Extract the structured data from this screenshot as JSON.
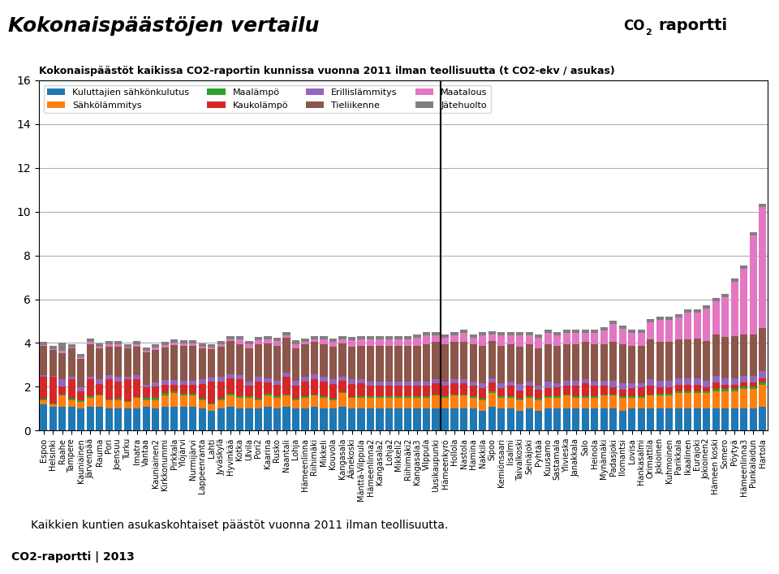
{
  "chart_data": {
    "type": "bar",
    "stacked": true,
    "title": "Kokonaispäästöjen vertailu",
    "subtitle": "Kokonaispäästöt kaikissa CO2-raportin kunnissa vuonna 2011 ilman teollisuutta (t CO2-ekv / asukas)",
    "annotations": [
      "Kaikkien kuntien asukaskohtaiset päästöt vuonna 2011 ilman teollisuutta.",
      "CO2-raportti | 2013",
      "CO",
      "2",
      "raportti"
    ],
    "categories": [
      "Espoo",
      "Helsinki",
      "Raahe",
      "Tampere",
      "Kauniainen",
      "Järvenpää",
      "Rauma",
      "Pori",
      "Joensuu",
      "Turku",
      "Imatra",
      "Vantaa",
      "Kauniainen2",
      "Kirkkonummi",
      "Pirkkala",
      "Ylöjärvi",
      "Nurmijärvi",
      "Lappeenranta",
      "Lahti",
      "Jyväskylä",
      "Hyvinkää",
      "Kotka",
      "Ulvila",
      "Pori2",
      "Kaarina",
      "Rusko",
      "Naantali",
      "Lohja",
      "Hämeenlinna",
      "Riihimäki",
      "Mikkeli",
      "Kouvola",
      "Kangasala",
      "Äänekoski",
      "Mänttä-Vilppula",
      "Hämeenlinna2",
      "Kangasala2",
      "Lohja2",
      "Mikkeli2",
      "Riihimäki2",
      "Kangasala3",
      "Vilppula",
      "Uusikaupunki",
      "Hämeenkyrö",
      "Hollola",
      "Nastola",
      "Hamina",
      "Nakkila",
      "Sipoo",
      "Kemiönsaari",
      "Iisalmi",
      "Taivalkoski",
      "Seinäjoki",
      "Pyhtää",
      "Kuusamo",
      "Sastamala",
      "Ylivieska",
      "Janakkala",
      "Salo",
      "Heinola",
      "Mynämäki",
      "Padasjoki",
      "Ilomantsi",
      "Lovisa",
      "Hankasalmi",
      "Orimattila",
      "Jokioinen",
      "Kuhmoinen",
      "Parikkala",
      "Ikaalinen",
      "Eurajoki",
      "Jokioinen2",
      "Hämeen koski",
      "Somero",
      "Pöytyä",
      "Hämeenlinna3",
      "Punkalaidun",
      "Hartola"
    ],
    "series": [
      {
        "name": "Kuluttajien sähkönkulutus",
        "values": [
          1.2,
          1.1,
          1.1,
          1.1,
          1.0,
          1.1,
          1.1,
          1.0,
          1.0,
          1.0,
          1.0,
          1.1,
          1.0,
          1.1,
          1.1,
          1.1,
          1.1,
          1.0,
          0.9,
          1.0,
          1.1,
          1.0,
          1.0,
          1.0,
          1.1,
          1.0,
          1.1,
          1.0,
          1.0,
          1.1,
          1.0,
          1.0,
          1.1,
          1.0,
          1.0,
          1.0,
          1.0,
          1.0,
          1.0,
          1.0,
          1.0,
          1.0,
          1.0,
          1.0,
          1.0,
          1.0,
          1.0,
          0.9,
          1.1,
          1.0,
          1.0,
          0.9,
          1.0,
          0.9,
          1.0,
          1.0,
          1.0,
          1.0,
          1.0,
          1.0,
          1.0,
          1.0,
          0.9,
          1.0,
          1.0,
          1.0,
          1.0,
          1.0,
          1.0,
          1.0,
          1.0,
          1.0,
          1.0,
          1.0,
          1.0,
          1.0,
          1.0,
          1.1
        ]
      },
      {
        "name": "Sähkölämmitys",
        "values": [
          0.2,
          0.1,
          0.5,
          0.3,
          0.3,
          0.4,
          0.5,
          0.4,
          0.4,
          0.3,
          0.5,
          0.3,
          0.4,
          0.5,
          0.6,
          0.5,
          0.5,
          0.4,
          0.3,
          0.4,
          0.5,
          0.5,
          0.5,
          0.4,
          0.5,
          0.5,
          0.5,
          0.4,
          0.5,
          0.5,
          0.5,
          0.4,
          0.6,
          0.5,
          0.5,
          0.5,
          0.5,
          0.5,
          0.5,
          0.5,
          0.5,
          0.5,
          0.6,
          0.5,
          0.6,
          0.6,
          0.5,
          0.5,
          0.6,
          0.5,
          0.5,
          0.5,
          0.5,
          0.5,
          0.5,
          0.5,
          0.6,
          0.5,
          0.5,
          0.5,
          0.6,
          0.6,
          0.6,
          0.5,
          0.5,
          0.6,
          0.6,
          0.6,
          0.7,
          0.7,
          0.7,
          0.7,
          0.8,
          0.8,
          0.8,
          0.9,
          0.9,
          1.0
        ]
      },
      {
        "name": "Maalämpö",
        "values": [
          0.05,
          0.04,
          0.03,
          0.04,
          0.08,
          0.06,
          0.04,
          0.03,
          0.04,
          0.04,
          0.04,
          0.08,
          0.1,
          0.1,
          0.1,
          0.08,
          0.08,
          0.04,
          0.03,
          0.04,
          0.08,
          0.05,
          0.05,
          0.04,
          0.08,
          0.08,
          0.04,
          0.06,
          0.05,
          0.06,
          0.05,
          0.04,
          0.07,
          0.04,
          0.05,
          0.05,
          0.05,
          0.05,
          0.05,
          0.05,
          0.05,
          0.05,
          0.05,
          0.05,
          0.06,
          0.06,
          0.05,
          0.05,
          0.1,
          0.05,
          0.05,
          0.04,
          0.05,
          0.05,
          0.05,
          0.06,
          0.06,
          0.06,
          0.05,
          0.05,
          0.06,
          0.06,
          0.05,
          0.05,
          0.06,
          0.06,
          0.07,
          0.07,
          0.08,
          0.08,
          0.09,
          0.08,
          0.09,
          0.09,
          0.1,
          0.1,
          0.1,
          0.1
        ]
      },
      {
        "name": "Kaukolämpö",
        "values": [
          1.0,
          1.2,
          0.4,
          0.9,
          0.4,
          0.8,
          0.5,
          0.9,
          0.8,
          1.0,
          0.8,
          0.5,
          0.5,
          0.4,
          0.3,
          0.4,
          0.4,
          0.7,
          1.0,
          0.8,
          0.7,
          0.8,
          0.5,
          0.8,
          0.5,
          0.5,
          0.8,
          0.6,
          0.7,
          0.7,
          0.7,
          0.7,
          0.5,
          0.6,
          0.6,
          0.5,
          0.5,
          0.5,
          0.5,
          0.5,
          0.5,
          0.5,
          0.5,
          0.5,
          0.5,
          0.5,
          0.5,
          0.5,
          0.4,
          0.4,
          0.5,
          0.4,
          0.5,
          0.4,
          0.4,
          0.4,
          0.4,
          0.5,
          0.6,
          0.5,
          0.4,
          0.3,
          0.3,
          0.4,
          0.4,
          0.4,
          0.3,
          0.3,
          0.3,
          0.3,
          0.3,
          0.2,
          0.3,
          0.2,
          0.2,
          0.2,
          0.2,
          0.2
        ]
      },
      {
        "name": "Erillislämmitys",
        "values": [
          0.1,
          0.05,
          0.3,
          0.1,
          0.2,
          0.1,
          0.2,
          0.2,
          0.2,
          0.1,
          0.2,
          0.1,
          0.2,
          0.2,
          0.2,
          0.2,
          0.2,
          0.2,
          0.2,
          0.2,
          0.2,
          0.2,
          0.2,
          0.2,
          0.2,
          0.2,
          0.2,
          0.2,
          0.2,
          0.2,
          0.2,
          0.2,
          0.2,
          0.2,
          0.2,
          0.2,
          0.2,
          0.2,
          0.2,
          0.2,
          0.2,
          0.2,
          0.2,
          0.2,
          0.2,
          0.2,
          0.2,
          0.2,
          0.2,
          0.2,
          0.2,
          0.3,
          0.2,
          0.2,
          0.3,
          0.2,
          0.2,
          0.2,
          0.2,
          0.2,
          0.2,
          0.3,
          0.3,
          0.2,
          0.2,
          0.3,
          0.3,
          0.3,
          0.3,
          0.3,
          0.3,
          0.3,
          0.3,
          0.3,
          0.3,
          0.3,
          0.3,
          0.3
        ]
      },
      {
        "name": "Tieliikenne",
        "values": [
          1.3,
          1.2,
          1.2,
          1.3,
          1.3,
          1.5,
          1.4,
          1.3,
          1.4,
          1.3,
          1.3,
          1.5,
          1.5,
          1.5,
          1.6,
          1.6,
          1.6,
          1.4,
          1.3,
          1.4,
          1.5,
          1.4,
          1.5,
          1.5,
          1.6,
          1.6,
          1.6,
          1.5,
          1.5,
          1.5,
          1.5,
          1.5,
          1.5,
          1.5,
          1.5,
          1.6,
          1.6,
          1.6,
          1.6,
          1.6,
          1.6,
          1.7,
          1.7,
          1.7,
          1.7,
          1.7,
          1.7,
          1.7,
          1.7,
          1.7,
          1.7,
          1.7,
          1.7,
          1.7,
          1.7,
          1.7,
          1.7,
          1.7,
          1.7,
          1.7,
          1.7,
          1.8,
          1.8,
          1.7,
          1.7,
          1.8,
          1.8,
          1.8,
          1.8,
          1.8,
          1.8,
          1.8,
          1.9,
          1.9,
          1.9,
          1.9,
          1.9,
          2.0
        ]
      },
      {
        "name": "Maatalous",
        "values": [
          0.04,
          0.03,
          0.1,
          0.04,
          0.05,
          0.1,
          0.1,
          0.1,
          0.1,
          0.05,
          0.1,
          0.05,
          0.1,
          0.1,
          0.1,
          0.1,
          0.1,
          0.1,
          0.05,
          0.1,
          0.1,
          0.2,
          0.2,
          0.2,
          0.2,
          0.2,
          0.1,
          0.2,
          0.1,
          0.1,
          0.2,
          0.2,
          0.2,
          0.3,
          0.3,
          0.3,
          0.3,
          0.3,
          0.3,
          0.3,
          0.4,
          0.4,
          0.3,
          0.3,
          0.3,
          0.4,
          0.3,
          0.5,
          0.3,
          0.5,
          0.4,
          0.5,
          0.4,
          0.5,
          0.5,
          0.5,
          0.5,
          0.5,
          0.4,
          0.5,
          0.6,
          0.8,
          0.7,
          0.6,
          0.6,
          0.8,
          1.0,
          1.0,
          1.0,
          1.2,
          1.2,
          1.5,
          1.5,
          1.8,
          2.5,
          3.0,
          4.5,
          5.5
        ]
      },
      {
        "name": "Jätehuolto",
        "values": [
          0.15,
          0.15,
          0.4,
          0.15,
          0.15,
          0.15,
          0.15,
          0.15,
          0.15,
          0.15,
          0.15,
          0.15,
          0.15,
          0.15,
          0.15,
          0.15,
          0.15,
          0.15,
          0.15,
          0.15,
          0.15,
          0.15,
          0.15,
          0.15,
          0.15,
          0.15,
          0.15,
          0.15,
          0.15,
          0.15,
          0.15,
          0.15,
          0.15,
          0.15,
          0.15,
          0.15,
          0.15,
          0.15,
          0.15,
          0.15,
          0.15,
          0.15,
          0.15,
          0.15,
          0.15,
          0.15,
          0.15,
          0.15,
          0.15,
          0.15,
          0.15,
          0.15,
          0.15,
          0.15,
          0.15,
          0.15,
          0.15,
          0.15,
          0.15,
          0.15,
          0.15,
          0.15,
          0.15,
          0.15,
          0.15,
          0.15,
          0.15,
          0.15,
          0.15,
          0.15,
          0.15,
          0.15,
          0.15,
          0.15,
          0.15,
          0.15,
          0.15,
          0.15
        ]
      }
    ],
    "divider_after": "Uusikaupunki",
    "ylim": [
      0,
      16
    ],
    "yticks": [
      0,
      2,
      4,
      6,
      8,
      10,
      12,
      14,
      16
    ],
    "grid": true,
    "legend": "upper left"
  }
}
